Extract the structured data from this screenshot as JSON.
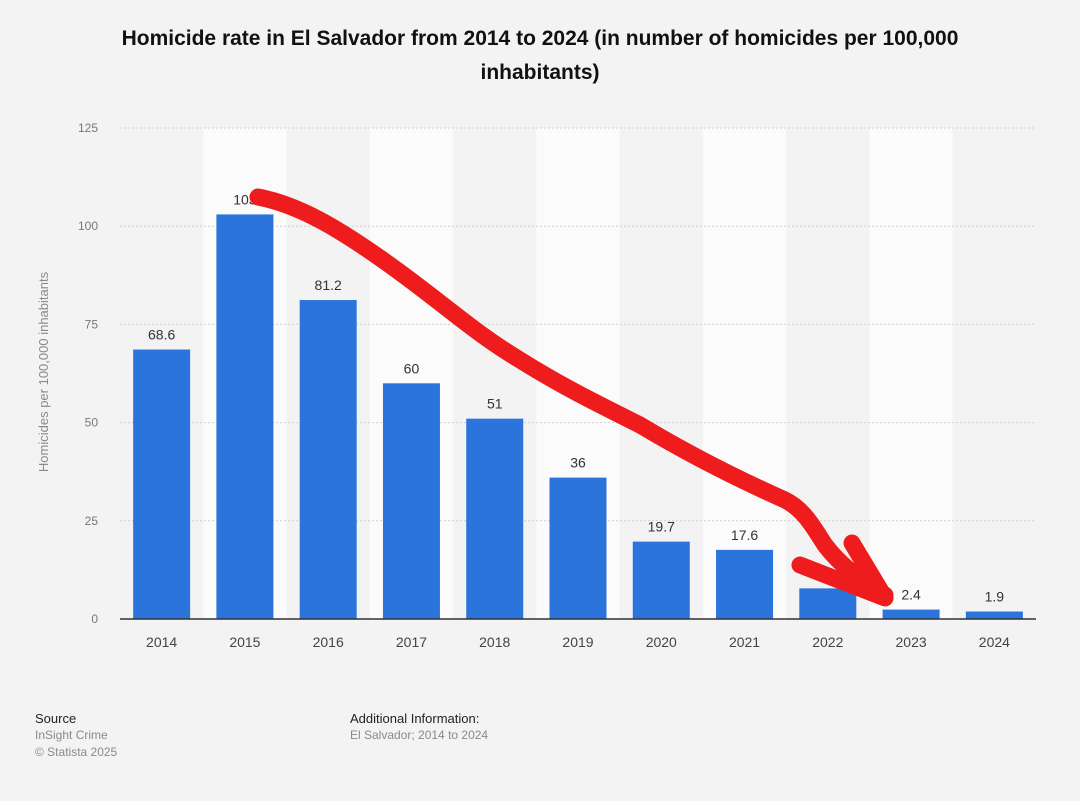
{
  "chart_data": {
    "type": "bar",
    "title": "Homicide rate in El Salvador from 2014 to 2024 (in number of homicides per 100,000 inhabitants)",
    "ylabel": "Homicides per 100,000 inhabitants",
    "xlabel": "",
    "categories": [
      "2014",
      "2015",
      "2016",
      "2017",
      "2018",
      "2019",
      "2020",
      "2021",
      "2022",
      "2023",
      "2024"
    ],
    "values": [
      68.6,
      103,
      81.2,
      60,
      51,
      36,
      19.7,
      17.6,
      7.8,
      2.4,
      1.9
    ],
    "value_labels": [
      "68.6",
      "103",
      "81.2",
      "60",
      "51",
      "36",
      "19.7",
      "17.6",
      "",
      "2.4",
      "1.9"
    ],
    "ylim": [
      0,
      125
    ],
    "yticks": [
      0,
      25,
      50,
      75,
      100,
      125
    ],
    "grid": true,
    "bar_color": "#2a74dc",
    "annotation": {
      "type": "hand-drawn-arrow",
      "color": "#ee1c1c",
      "from_category": "2015",
      "to_category": "2023"
    }
  },
  "footer": {
    "source_heading": "Source",
    "source_lines": [
      "InSight Crime",
      "© Statista 2025"
    ],
    "info_heading": "Additional Information:",
    "info_text": "El Salvador; 2014 to 2024"
  }
}
